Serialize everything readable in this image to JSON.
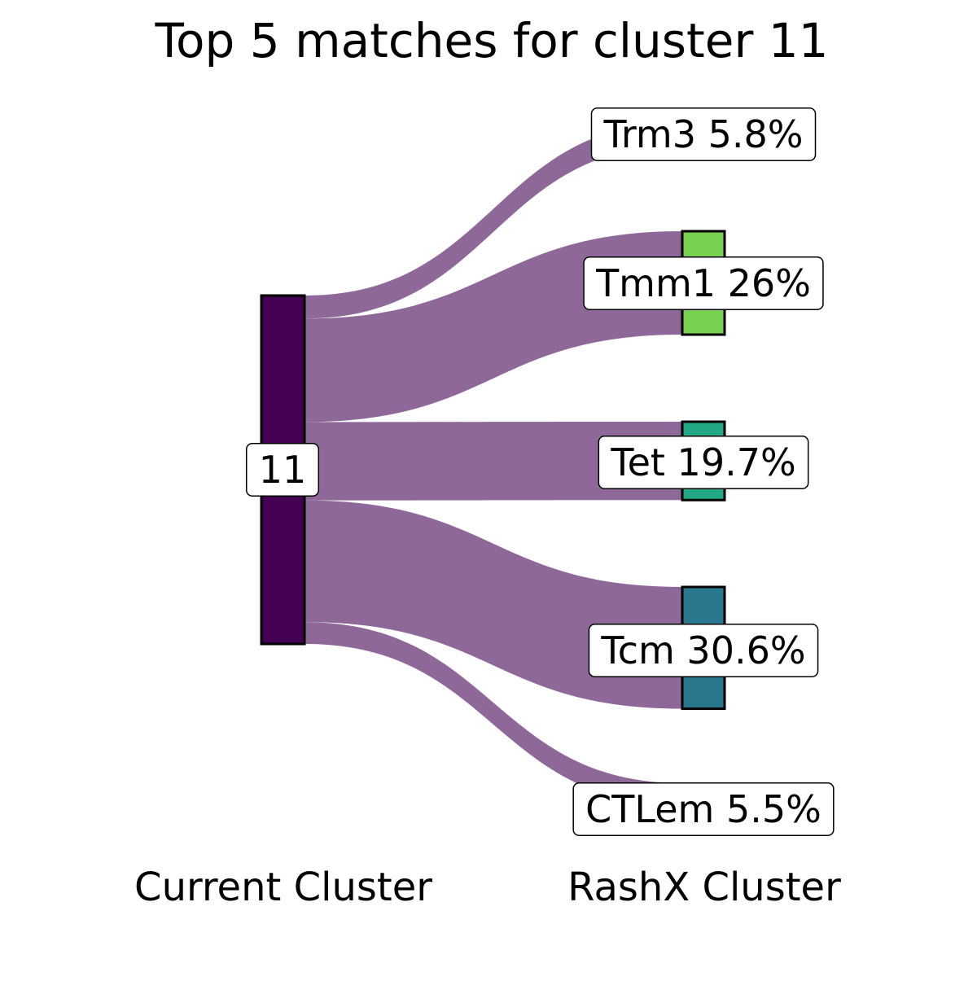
{
  "title": "Top 5 matches for cluster 11",
  "left_axis_label": "Current Cluster",
  "right_axis_label": "RashX Cluster",
  "colors": {
    "flow": "#8e6898",
    "source_node": "#440154",
    "node_border": "#000000",
    "label_bg": "#ffffff"
  },
  "chart_data": {
    "type": "sankey",
    "source": {
      "name": "11",
      "color": "#440154"
    },
    "targets": [
      {
        "name": "Trm3",
        "percent": 5.8,
        "label": "Trm3 5.8%",
        "color": null
      },
      {
        "name": "Tmm1",
        "percent": 26,
        "label": "Tmm1 26%",
        "color": "#7ad151"
      },
      {
        "name": "Tet",
        "percent": 19.7,
        "label": "Tet 19.7%",
        "color": "#22a884"
      },
      {
        "name": "Tcm",
        "percent": 30.6,
        "label": "Tcm 30.6%",
        "color": "#2a788e"
      },
      {
        "name": "CTLem",
        "percent": 5.5,
        "label": "CTLem 5.5%",
        "color": null
      }
    ]
  }
}
